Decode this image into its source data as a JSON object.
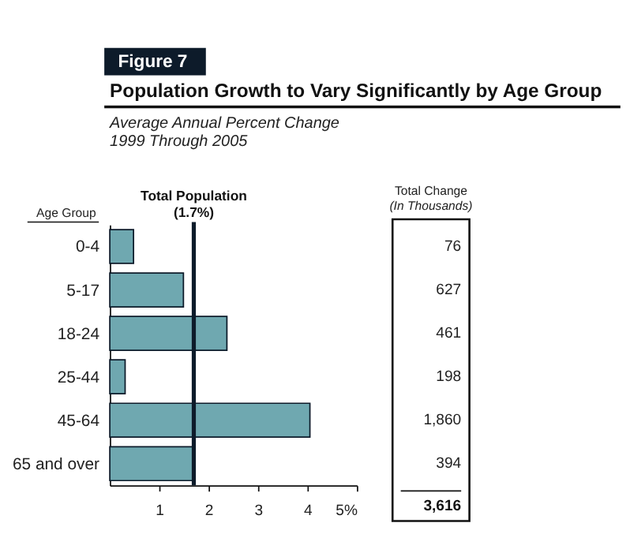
{
  "chart_data": {
    "type": "bar",
    "orientation": "horizontal",
    "title": "Population Growth to Vary Significantly by Age Group",
    "subtitle": "Average Annual Percent Change\n1999 Through 2005",
    "ylabel": "Age Group",
    "categories": [
      "0-4",
      "5-17",
      "18-24",
      "25-44",
      "45-64",
      "65 and over"
    ],
    "values": [
      0.48,
      1.49,
      2.37,
      0.31,
      4.05,
      1.7
    ],
    "color": "#6fa8b0",
    "xlim": [
      0,
      5
    ],
    "xticks": [
      1,
      2,
      3,
      4,
      {
        "value": 5,
        "label": "5%"
      }
    ],
    "grid": false,
    "ref_lines": [
      {
        "axis": "x",
        "value": 1.7,
        "label": "Total Population (1.7%)",
        "color": "#0d1b2a"
      }
    ],
    "annotations": [
      "Figure 7",
      "Total Change",
      "(In Thousands)",
      "76",
      "627",
      "461",
      "198",
      "1,860",
      "394",
      "3,616"
    ]
  }
}
